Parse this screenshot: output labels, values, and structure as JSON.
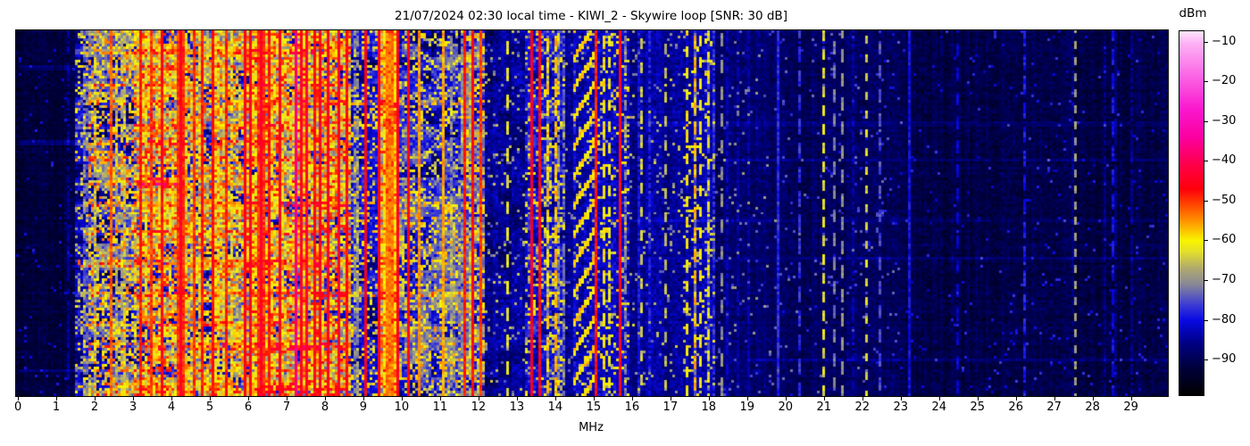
{
  "figure": {
    "title": "21/07/2024 02:30 local time - KIWI_2 - Skywire loop [SNR: 30 dB]",
    "xlabel": "MHz",
    "colorbar_label": "dBm"
  },
  "chart_data": {
    "type": "heatmap",
    "title": "21/07/2024 02:30 local time - KIWI_2 - Skywire loop [SNR: 30 dB]",
    "xlabel": "MHz",
    "ylabel": "",
    "x_range": [
      -0.06,
      29.95
    ],
    "x_ticks": [
      0,
      1,
      2,
      3,
      4,
      5,
      6,
      7,
      8,
      9,
      10,
      11,
      12,
      13,
      14,
      15,
      16,
      17,
      18,
      19,
      20,
      21,
      22,
      23,
      24,
      25,
      26,
      27,
      28,
      29
    ],
    "grid": false,
    "legend": "none",
    "colorbar": {
      "label": "dBm",
      "vmax": -7.3,
      "vmin": -98.8,
      "ticks": [
        {
          "v": -10,
          "label": "−10"
        },
        {
          "v": -20,
          "label": "−20"
        },
        {
          "v": -30,
          "label": "−30"
        },
        {
          "v": -40,
          "label": "−40"
        },
        {
          "v": -50,
          "label": "−50"
        },
        {
          "v": -60,
          "label": "−60"
        },
        {
          "v": -70,
          "label": "−70"
        },
        {
          "v": -80,
          "label": "−80"
        },
        {
          "v": -90,
          "label": "−90"
        }
      ]
    },
    "colormap": [
      [
        -99,
        0,
        0,
        0
      ],
      [
        -92,
        0,
        0,
        60
      ],
      [
        -86,
        0,
        0,
        130
      ],
      [
        -80,
        10,
        10,
        228
      ],
      [
        -76,
        62,
        62,
        212
      ],
      [
        -71,
        136,
        136,
        152
      ],
      [
        -67,
        176,
        170,
        112
      ],
      [
        -63,
        226,
        221,
        48
      ],
      [
        -60,
        250,
        246,
        0
      ],
      [
        -56,
        255,
        166,
        0
      ],
      [
        -51,
        255,
        72,
        0
      ],
      [
        -47,
        255,
        0,
        12
      ],
      [
        -41,
        255,
        0,
        72
      ],
      [
        -34,
        252,
        0,
        160
      ],
      [
        -27,
        250,
        24,
        206
      ],
      [
        -18,
        252,
        106,
        230
      ],
      [
        -10,
        253,
        182,
        246
      ],
      [
        -7,
        255,
        232,
        252
      ]
    ],
    "bands": [
      {
        "f0": 0.0,
        "f1": 1.45,
        "base": -92,
        "var": 2.5,
        "spk": 0.02,
        "s0": -85,
        "s1": -78,
        "patch": 0,
        "stripe": 0.02,
        "sb0": 4,
        "sb1": 7
      },
      {
        "f0": 1.45,
        "f1": 1.8,
        "base": -82,
        "var": 4,
        "spk": 0.22,
        "s0": -72,
        "s1": -58,
        "patch": 0.5,
        "stripe": 0.15,
        "sb0": 5,
        "sb1": 9
      },
      {
        "f0": 1.8,
        "f1": 3.0,
        "base": -74,
        "var": 6,
        "spk": 0.42,
        "s0": -68,
        "s1": -52,
        "patch": 1,
        "stripe": 0.2,
        "sb0": 4,
        "sb1": 9
      },
      {
        "f0": 3.0,
        "f1": 4.3,
        "base": -68,
        "var": 7,
        "spk": 0.5,
        "s0": -64,
        "s1": -48,
        "patch": 1,
        "stripe": 0.2,
        "sb0": 4,
        "sb1": 8
      },
      {
        "f0": 4.3,
        "f1": 5.9,
        "base": -70,
        "var": 7,
        "spk": 0.48,
        "s0": -65,
        "s1": -50,
        "patch": 1,
        "stripe": 0.2,
        "sb0": 4,
        "sb1": 8
      },
      {
        "f0": 5.9,
        "f1": 8.65,
        "base": -67,
        "var": 7,
        "spk": 0.52,
        "s0": -63,
        "s1": -47,
        "patch": 1,
        "stripe": 0.2,
        "sb0": 4,
        "sb1": 8
      },
      {
        "f0": 8.65,
        "f1": 9.35,
        "base": -80,
        "var": 4,
        "spk": 0.25,
        "s0": -70,
        "s1": -56,
        "patch": 0.5,
        "stripe": 0.3,
        "sb0": 6,
        "sb1": 12
      },
      {
        "f0": 9.35,
        "f1": 9.95,
        "base": -64,
        "var": 5,
        "spk": 0.5,
        "s0": -60,
        "s1": -48,
        "patch": 0.5,
        "stripe": 0.3,
        "sb0": 4,
        "sb1": 8
      },
      {
        "f0": 9.95,
        "f1": 10.6,
        "base": -77,
        "var": 5,
        "spk": 0.3,
        "s0": -70,
        "s1": -58,
        "patch": 0.7,
        "stripe": 0.2,
        "sb0": 5,
        "sb1": 9
      },
      {
        "f0": 10.6,
        "f1": 11.6,
        "base": -78,
        "var": 5,
        "spk": 0.28,
        "s0": -70,
        "s1": -58,
        "patch": 0.7,
        "stripe": 0.18,
        "sb0": 5,
        "sb1": 9
      },
      {
        "f0": 11.6,
        "f1": 12.15,
        "base": -74,
        "var": 6,
        "spk": 0.38,
        "s0": -68,
        "s1": -55,
        "patch": 0.6,
        "stripe": 0.3,
        "sb0": 5,
        "sb1": 10
      },
      {
        "f0": 12.15,
        "f1": 13.2,
        "base": -85,
        "var": 3.5,
        "spk": 0.07,
        "s0": -76,
        "s1": -64,
        "patch": 0.3,
        "stripe": 0.06,
        "sb0": 5,
        "sb1": 8
      },
      {
        "f0": 13.2,
        "f1": 14.25,
        "base": -80,
        "var": 4.5,
        "spk": 0.22,
        "s0": -70,
        "s1": -58,
        "patch": 0.4,
        "stripe": 0.25,
        "sb0": 5,
        "sb1": 10
      },
      {
        "f0": 14.25,
        "f1": 14.5,
        "base": -85,
        "var": 3,
        "spk": 0.05,
        "s0": -76,
        "s1": -66,
        "patch": 0,
        "stripe": 0.05,
        "sb0": 4,
        "sb1": 7
      },
      {
        "f0": 14.5,
        "f1": 15.1,
        "base": -83,
        "var": 4,
        "spk": 0.1,
        "s0": -72,
        "s1": -60,
        "patch": 0,
        "stripe": 0.1,
        "sb0": 5,
        "sb1": 8
      },
      {
        "f0": 15.1,
        "f1": 15.95,
        "base": -82,
        "var": 4,
        "spk": 0.15,
        "s0": -70,
        "s1": -57,
        "patch": 0,
        "stripe": 0.2,
        "sb0": 5,
        "sb1": 9
      },
      {
        "f0": 15.95,
        "f1": 17.3,
        "base": -85,
        "var": 3,
        "spk": 0.06,
        "s0": -75,
        "s1": -63,
        "patch": 0,
        "stripe": 0.08,
        "sb0": 4,
        "sb1": 8
      },
      {
        "f0": 17.3,
        "f1": 18.15,
        "base": -84,
        "var": 3.5,
        "spk": 0.12,
        "s0": -70,
        "s1": -58,
        "patch": 0,
        "stripe": 0.2,
        "sb0": 5,
        "sb1": 9
      },
      {
        "f0": 18.15,
        "f1": 19.6,
        "base": -88,
        "var": 3,
        "spk": 0.04,
        "s0": -78,
        "s1": -68,
        "patch": 0,
        "stripe": 0.06,
        "sb0": 3,
        "sb1": 6
      },
      {
        "f0": 19.6,
        "f1": 23.0,
        "base": -89,
        "var": 3,
        "spk": 0.03,
        "s0": -80,
        "s1": -72,
        "patch": 0,
        "stripe": 0.05,
        "sb0": 3,
        "sb1": 6
      },
      {
        "f0": 23.0,
        "f1": 29.95,
        "base": -91,
        "var": 2.8,
        "spk": 0.02,
        "s0": -83,
        "s1": -76,
        "patch": 0,
        "stripe": 0.04,
        "sb0": 2,
        "sb1": 5
      }
    ],
    "vlines": [
      [
        2.45,
        -52,
        0.05,
        1,
        0
      ],
      [
        3.2,
        -48,
        0.06,
        1,
        0
      ],
      [
        3.45,
        -50,
        0.05,
        1,
        0
      ],
      [
        3.75,
        -47,
        0.06,
        1,
        0
      ],
      [
        4.2,
        -44,
        0.07,
        1,
        0
      ],
      [
        4.55,
        -50,
        0.05,
        1,
        0
      ],
      [
        4.78,
        -48,
        0.05,
        1,
        0
      ],
      [
        5.06,
        -47,
        0.05,
        1,
        0
      ],
      [
        5.45,
        -49,
        0.05,
        1,
        0
      ],
      [
        5.94,
        -46,
        0.06,
        1,
        0
      ],
      [
        6.08,
        -45,
        0.05,
        1,
        0
      ],
      [
        6.3,
        -44,
        0.07,
        1,
        0
      ],
      [
        6.57,
        -48,
        0.05,
        1,
        0
      ],
      [
        6.79,
        -46,
        0.05,
        1,
        0
      ],
      [
        7.2,
        -37,
        0.05,
        1,
        0
      ],
      [
        7.35,
        -44,
        0.05,
        1,
        0
      ],
      [
        7.5,
        -43,
        0.06,
        1,
        0
      ],
      [
        7.7,
        -47,
        0.05,
        1,
        0
      ],
      [
        7.87,
        -46,
        0.05,
        1,
        0
      ],
      [
        8.05,
        -45,
        0.05,
        1,
        0
      ],
      [
        8.33,
        -44,
        0.06,
        1,
        0
      ],
      [
        8.55,
        -47,
        0.05,
        1,
        0
      ],
      [
        9.05,
        -46,
        0.06,
        1,
        0
      ],
      [
        9.42,
        -45,
        0.06,
        1,
        0
      ],
      [
        9.65,
        -54,
        0.22,
        1,
        0
      ],
      [
        9.88,
        -45,
        0.06,
        1,
        0
      ],
      [
        10.15,
        -46,
        0.06,
        1,
        0
      ],
      [
        10.45,
        -55,
        0.05,
        1,
        0
      ],
      [
        11.08,
        -56,
        0.05,
        1,
        0
      ],
      [
        11.63,
        -48,
        0.05,
        1,
        0
      ],
      [
        11.82,
        -47,
        0.05,
        1,
        0
      ],
      [
        12.08,
        -50,
        0.05,
        1,
        0
      ],
      [
        12.75,
        -62,
        0.04,
        0.5,
        10
      ],
      [
        13.35,
        -45,
        0.05,
        1,
        0
      ],
      [
        13.57,
        -47,
        0.05,
        1,
        0
      ],
      [
        13.8,
        -58,
        0.04,
        0.6,
        8
      ],
      [
        14.0,
        -57,
        0.04,
        0.7,
        8
      ],
      [
        15.03,
        -48,
        0.06,
        1,
        0
      ],
      [
        15.25,
        -60,
        0.04,
        0.6,
        8
      ],
      [
        15.4,
        -62,
        0.04,
        0.5,
        8
      ],
      [
        15.65,
        -46,
        0.06,
        1,
        0
      ],
      [
        16.25,
        -64,
        0.04,
        0.4,
        9
      ],
      [
        16.85,
        -66,
        0.04,
        0.4,
        9
      ],
      [
        17.45,
        -60,
        0.04,
        0.55,
        8
      ],
      [
        17.62,
        -57,
        0.04,
        0.6,
        8
      ],
      [
        17.78,
        -61,
        0.04,
        0.5,
        8
      ],
      [
        17.95,
        -63,
        0.04,
        0.5,
        8
      ],
      [
        18.35,
        -70,
        0.04,
        0.5,
        10
      ],
      [
        19.8,
        -78,
        0.05,
        1,
        0
      ],
      [
        20.35,
        -77,
        0.04,
        0.7,
        9
      ],
      [
        21.0,
        -63,
        0.04,
        0.5,
        7
      ],
      [
        21.25,
        -72,
        0.04,
        0.5,
        9
      ],
      [
        21.5,
        -70,
        0.04,
        0.5,
        9
      ],
      [
        22.1,
        -64,
        0.04,
        0.45,
        7
      ],
      [
        22.45,
        -75,
        0.04,
        0.6,
        9
      ],
      [
        23.2,
        -80,
        0.05,
        1,
        0
      ],
      [
        24.5,
        -82,
        0.04,
        0.6,
        9
      ],
      [
        26.25,
        -79,
        0.04,
        0.7,
        9
      ],
      [
        27.52,
        -69,
        0.04,
        0.55,
        6
      ],
      [
        28.55,
        -80,
        0.04,
        0.7,
        9
      ]
    ],
    "events": [
      [
        0.05,
        0.065,
        1.45,
        8.65,
        6
      ],
      [
        0.095,
        0.105,
        0,
        8.65,
        4
      ],
      [
        0.14,
        0.15,
        1.45,
        8.65,
        7
      ],
      [
        0.19,
        0.2,
        1.45,
        12.1,
        5
      ],
      [
        0.255,
        0.265,
        1.45,
        8.65,
        6
      ],
      [
        0.3,
        0.315,
        0,
        8.65,
        5
      ],
      [
        0.345,
        0.355,
        1.45,
        8.65,
        4
      ],
      [
        0.4,
        0.43,
        2.8,
        4.1,
        9
      ],
      [
        0.415,
        0.425,
        1.45,
        8.65,
        5
      ],
      [
        0.47,
        0.48,
        1.45,
        8.65,
        6
      ],
      [
        0.55,
        0.56,
        1.45,
        8.65,
        5
      ],
      [
        0.63,
        0.65,
        1.45,
        8.65,
        7
      ],
      [
        0.72,
        0.73,
        1.45,
        12.1,
        5
      ],
      [
        0.8,
        0.81,
        1.45,
        8.65,
        6
      ],
      [
        0.86,
        0.88,
        1.45,
        8.65,
        8
      ],
      [
        0.93,
        0.94,
        0,
        8.65,
        5
      ],
      [
        0.965,
        1.0,
        1.45,
        8.65,
        5
      ],
      [
        0.45,
        0.97,
        9.95,
        11.55,
        4
      ],
      [
        0.25,
        0.258,
        15,
        29.95,
        3
      ],
      [
        0.35,
        0.357,
        18,
        29.95,
        3
      ],
      [
        0.52,
        0.527,
        15,
        29.95,
        3
      ],
      [
        0.9,
        0.907,
        19,
        29.95,
        4
      ],
      [
        0.62,
        0.627,
        20,
        29.95,
        3
      ]
    ],
    "hatch": {
      "f0": 14.45,
      "f1": 15.0,
      "period": 11,
      "duty": 3,
      "slope": 1.6,
      "db": -59
    },
    "seed": 7
  }
}
